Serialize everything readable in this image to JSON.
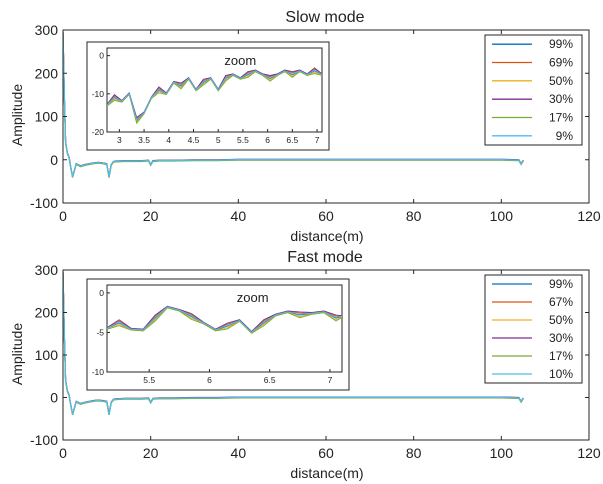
{
  "chart_data": [
    {
      "type": "line",
      "title": "Slow mode",
      "xlabel": "distance(m)",
      "ylabel": "Amplitude",
      "xlim": [
        0,
        120
      ],
      "ylim": [
        -100,
        300
      ],
      "xticks": [
        0,
        20,
        40,
        60,
        80,
        100,
        120
      ],
      "yticks": [
        -100,
        0,
        100,
        200,
        300
      ],
      "grid": false,
      "legend_position": "top-right",
      "x": [
        0,
        0.3,
        0.6,
        1,
        1.4,
        1.8,
        2.2,
        2.6,
        3,
        4,
        5,
        6,
        7,
        8,
        9,
        10,
        10.5,
        11,
        11.5,
        12,
        14,
        16,
        18,
        19.5,
        20,
        20.5,
        22,
        25,
        30,
        35,
        40,
        45,
        50,
        55,
        60,
        65,
        70,
        75,
        80,
        85,
        90,
        95,
        100,
        104,
        104.5,
        105
      ],
      "baseline": [
        295,
        150,
        40,
        15,
        5,
        -20,
        -40,
        -25,
        -10,
        -15,
        -12,
        -10,
        -8,
        -7,
        -8,
        -10,
        -40,
        -12,
        -5,
        -4,
        -3,
        -3,
        -3,
        -2,
        -12,
        -3,
        -2,
        -2,
        -1,
        -1,
        0,
        0,
        0,
        0,
        0,
        0,
        0,
        0,
        0,
        0,
        0,
        0,
        0,
        -1,
        -10,
        -2
      ],
      "series": [
        {
          "name": "99%",
          "color": "#0072bd",
          "offset": 0
        },
        {
          "name": "69%",
          "color": "#d95319",
          "offset": 0.6
        },
        {
          "name": "50%",
          "color": "#edb120",
          "offset": -0.6
        },
        {
          "name": "30%",
          "color": "#7e2f8e",
          "offset": 1.0
        },
        {
          "name": "17%",
          "color": "#77ac30",
          "offset": -1.0
        },
        {
          "name": "9%",
          "color": "#4dbeee",
          "offset": 0.3
        }
      ],
      "inset": {
        "label": "zoom",
        "xlim": [
          2.75,
          7.1
        ],
        "ylim": [
          -20,
          2
        ],
        "xticks": [
          "3",
          "3.5",
          "4",
          "4.5",
          "5",
          "5.5",
          "6",
          "6.5",
          "7"
        ],
        "yticks": [
          "0",
          "-10",
          "-20"
        ],
        "x": [
          2.75,
          2.9,
          3.05,
          3.2,
          3.35,
          3.5,
          3.65,
          3.8,
          3.95,
          4.1,
          4.25,
          4.4,
          4.55,
          4.7,
          4.85,
          5.0,
          5.15,
          5.3,
          5.45,
          5.6,
          5.75,
          5.9,
          6.05,
          6.2,
          6.35,
          6.5,
          6.65,
          6.8,
          6.95,
          7.1
        ],
        "y": [
          -13,
          -11,
          -12,
          -10,
          -17,
          -15,
          -11,
          -9,
          -10,
          -7,
          -8,
          -6,
          -9,
          -7,
          -6,
          -9,
          -6,
          -5,
          -6,
          -5,
          -4,
          -5,
          -6,
          -5,
          -4,
          -5,
          -4,
          -5,
          -4,
          -5
        ]
      }
    },
    {
      "type": "line",
      "title": "Fast mode",
      "xlabel": "distance(m)",
      "ylabel": "Amplitude",
      "xlim": [
        0,
        120
      ],
      "ylim": [
        -100,
        300
      ],
      "xticks": [
        0,
        20,
        40,
        60,
        80,
        100,
        120
      ],
      "yticks": [
        -100,
        0,
        100,
        200,
        300
      ],
      "grid": false,
      "legend_position": "top-right",
      "x": [
        0,
        0.3,
        0.6,
        1,
        1.4,
        1.8,
        2.2,
        2.6,
        3,
        4,
        5,
        6,
        7,
        8,
        9,
        10,
        10.5,
        11,
        11.5,
        12,
        14,
        16,
        18,
        19.5,
        20,
        20.5,
        22,
        25,
        30,
        35,
        40,
        45,
        50,
        55,
        60,
        65,
        70,
        75,
        80,
        85,
        90,
        95,
        100,
        104,
        104.5,
        105
      ],
      "baseline": [
        295,
        150,
        40,
        15,
        5,
        -20,
        -40,
        -25,
        -10,
        -15,
        -12,
        -10,
        -8,
        -7,
        -8,
        -10,
        -40,
        -12,
        -5,
        -4,
        -3,
        -3,
        -3,
        -2,
        -12,
        -3,
        -2,
        -2,
        -1,
        -1,
        0,
        0,
        0,
        0,
        0,
        0,
        0,
        0,
        0,
        0,
        0,
        0,
        0,
        -1,
        -10,
        -2
      ],
      "series": [
        {
          "name": "99%",
          "color": "#0072bd",
          "offset": 0
        },
        {
          "name": "67%",
          "color": "#d95319",
          "offset": 0.6
        },
        {
          "name": "50%",
          "color": "#edb120",
          "offset": -0.6
        },
        {
          "name": "30%",
          "color": "#7e2f8e",
          "offset": 1.0
        },
        {
          "name": "17%",
          "color": "#77ac30",
          "offset": -1.0
        },
        {
          "name": "10%",
          "color": "#4dbeee",
          "offset": 0.3
        }
      ],
      "inset": {
        "label": "zoom",
        "xlim": [
          5.15,
          7.1
        ],
        "ylim": [
          -10,
          1
        ],
        "xticks": [
          "5.5",
          "6",
          "6.5",
          "7"
        ],
        "yticks": [
          "0",
          "-5",
          "-10"
        ],
        "x": [
          5.15,
          5.25,
          5.35,
          5.45,
          5.55,
          5.65,
          5.75,
          5.85,
          5.95,
          6.05,
          6.15,
          6.25,
          6.35,
          6.45,
          6.55,
          6.65,
          6.75,
          6.85,
          6.95,
          7.05,
          7.1
        ],
        "y": [
          -4.5,
          -3.8,
          -4.6,
          -4.7,
          -3.2,
          -1.8,
          -2.2,
          -3.0,
          -3.8,
          -4.7,
          -4.2,
          -3.5,
          -5.0,
          -3.8,
          -2.8,
          -2.4,
          -2.8,
          -2.6,
          -2.4,
          -3.2,
          -3.0
        ]
      }
    }
  ]
}
